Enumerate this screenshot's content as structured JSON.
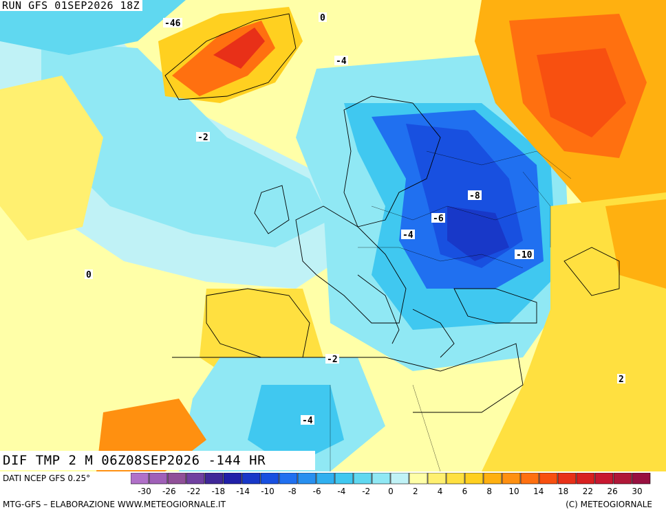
{
  "header": {
    "run_label": "RUN GFS 01SEP2026 18Z"
  },
  "map": {
    "field_label": "DIF TMP 2 M 06Z08SEP2026 -144 HR",
    "source_label": "DATI NCEP GFS 0.25°",
    "contour_labels": [
      "0",
      "-2",
      "-4",
      "-6",
      "-8",
      "-10",
      "2",
      "-46",
      "-2",
      "-4",
      "-4",
      "0"
    ]
  },
  "scale": {
    "colors": [
      "#b070c8",
      "#a060b8",
      "#905098",
      "#7040a0",
      "#402898",
      "#2020a8",
      "#1838c8",
      "#1850e0",
      "#2070f0",
      "#2890f0",
      "#30b0f0",
      "#40c8f0",
      "#60d8f0",
      "#90e8f4",
      "#c0f2f6",
      "#ffffa8",
      "#fff070",
      "#ffe040",
      "#ffd020",
      "#ffb010",
      "#ff9010",
      "#ff7010",
      "#f85010",
      "#e83018",
      "#d82020",
      "#c81830",
      "#b01838",
      "#981040"
    ],
    "tick_labels": [
      "-30",
      "-26",
      "-22",
      "-18",
      "-14",
      "-10",
      "-8",
      "-6",
      "-4",
      "-2",
      "0",
      "2",
      "4",
      "6",
      "8",
      "10",
      "14",
      "18",
      "22",
      "26",
      "30"
    ]
  },
  "footer": {
    "left": "MTG-GFS – ELABORAZIONE WWW.METEOGIORNALE.IT",
    "right": "(C) METEOGIORNALE"
  }
}
